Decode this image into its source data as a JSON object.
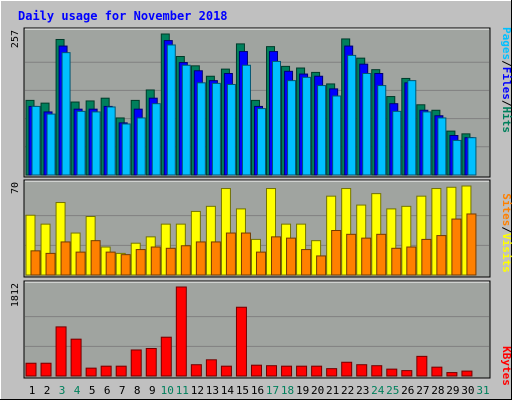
{
  "title": "Daily usage for November 2018",
  "colors": {
    "background": "#c0c0c0",
    "plot_area": "#a0a4a0",
    "grid": "#808080",
    "hits": "#00805c",
    "files": "#0000ff",
    "pages": "#00c0ff",
    "visits": "#ffff00",
    "sites": "#ff8000",
    "kbytes": "#ff0000",
    "title": "#0000ff",
    "weekend_day": "#00805c",
    "weekday": "#000000"
  },
  "legend": {
    "hits": "Hits",
    "files": "Files",
    "pages": "Pages",
    "visits": "Visits",
    "sites": "Sites",
    "kbytes": "KBytes",
    "sep": "/"
  },
  "chart_data": {
    "type": "bar",
    "days": [
      "1",
      "2",
      "3",
      "4",
      "5",
      "6",
      "7",
      "8",
      "9",
      "10",
      "11",
      "12",
      "13",
      "14",
      "15",
      "16",
      "17",
      "18",
      "19",
      "20",
      "21",
      "22",
      "23",
      "24",
      "25",
      "26",
      "27",
      "28",
      "29",
      "30",
      "31"
    ],
    "weekend_days": [
      "3",
      "4",
      "10",
      "11",
      "17",
      "18",
      "24",
      "25",
      "31"
    ],
    "panels": [
      {
        "name": "hits-files-pages",
        "axis_max_label": "257",
        "ymax": 257,
        "series": [
          {
            "name": "Hits",
            "values": [
              136,
              131,
              247,
              133,
              135,
              140,
              104,
              136,
              155,
              257,
              216,
              199,
              180,
              193,
              239,
              136,
              234,
              198,
              195,
              187,
              166,
              248,
              213,
              192,
              143,
              176,
              128,
              118,
              80,
              75
            ]
          },
          {
            "name": "Files",
            "values": [
              125,
              115,
              235,
              120,
              120,
              125,
              95,
              120,
              140,
              245,
              205,
              190,
              172,
              185,
              225,
              125,
              225,
              189,
              184,
              180,
              157,
              235,
              202,
              185,
              130,
              168,
              118,
              108,
              72,
              68
            ]
          },
          {
            "name": "Pages",
            "values": [
              125,
              111,
              223,
              116,
              115,
              124,
              93,
              104,
              130,
              237,
              200,
              168,
              167,
              165,
              200,
              121,
              207,
              172,
              178,
              163,
              144,
              218,
              185,
              163,
              116,
              172,
              115,
              104,
              63,
              68
            ]
          }
        ]
      },
      {
        "name": "visits-sites",
        "axis_max_label": "70",
        "ymax": 70,
        "series": [
          {
            "name": "Visits",
            "values": [
              47,
              40,
              57,
              33,
              46,
              22,
              17,
              25,
              30,
              40,
              40,
              50,
              54,
              68,
              52,
              28,
              68,
              40,
              40,
              27,
              62,
              68,
              55,
              64,
              52,
              54,
              62,
              68,
              69,
              70
            ]
          },
          {
            "name": "Sites",
            "values": [
              19,
              17,
              26,
              18,
              27,
              18,
              16,
              20,
              22,
              21,
              23,
              26,
              26,
              33,
              33,
              18,
              30,
              29,
              20,
              15,
              35,
              32,
              29,
              32,
              21,
              22,
              28,
              31,
              44,
              48
            ]
          }
        ]
      },
      {
        "name": "kbytes",
        "axis_max_label": "1812",
        "ymax": 1812,
        "series": [
          {
            "name": "KBytes",
            "values": [
              260,
              260,
              1000,
              750,
              160,
              200,
              200,
              530,
              560,
              790,
              1812,
              230,
              330,
              200,
              1400,
              220,
              210,
              200,
              200,
              200,
              150,
              280,
              230,
              210,
              140,
              110,
              400,
              180,
              70,
              100
            ]
          }
        ]
      }
    ]
  }
}
